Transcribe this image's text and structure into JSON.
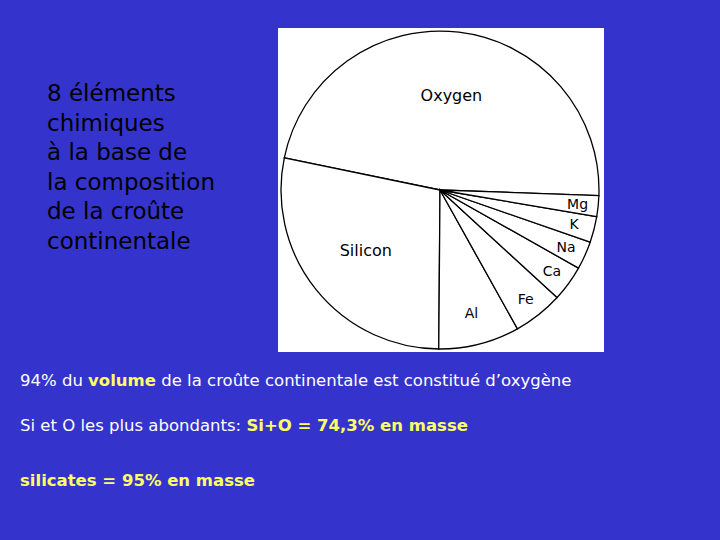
{
  "chart_data": {
    "type": "pie",
    "title": [
      "8 éléments",
      "chimiques",
      "à la base de",
      "la composition",
      "de la croûte",
      "continentale"
    ],
    "categories": [
      "Oxygen",
      "Silicon",
      "Al",
      "Fe",
      "Ca",
      "Na",
      "K",
      "Mg"
    ],
    "values": [
      46.6,
      27.7,
      8.1,
      5.0,
      3.6,
      2.8,
      2.6,
      2.1
    ],
    "color": "#ffffff",
    "annotations": [
      [
        "94% du ",
        "volume",
        " de la croûte continentale est constitué d’oxygène"
      ],
      [
        "Si et O les plus abondants: ",
        "Si+O = 74,3% en masse"
      ],
      [
        "silicates = 95% en masse"
      ]
    ]
  }
}
